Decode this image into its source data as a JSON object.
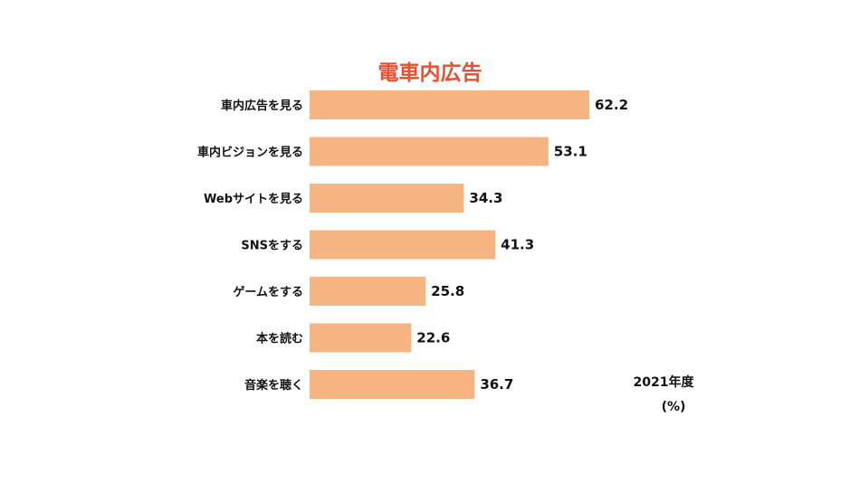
{
  "chart_data": {
    "type": "bar",
    "orientation": "horizontal",
    "title": "電車内広告",
    "categories": [
      "車内広告を見る",
      "車内ビジョンを見る",
      "Webサイトを見る",
      "SNSをする",
      "ゲームをする",
      "本を読む",
      "音楽を聴く"
    ],
    "values": [
      62.2,
      53.1,
      34.3,
      41.3,
      25.8,
      22.6,
      36.7
    ],
    "xlim": [
      0,
      62.2
    ],
    "note_year": "2021年度",
    "unit": "(%)",
    "grid": false,
    "legend": "none",
    "colors": {
      "bar": "#f5b482",
      "title": "#e8502d",
      "text": "#111111"
    }
  }
}
